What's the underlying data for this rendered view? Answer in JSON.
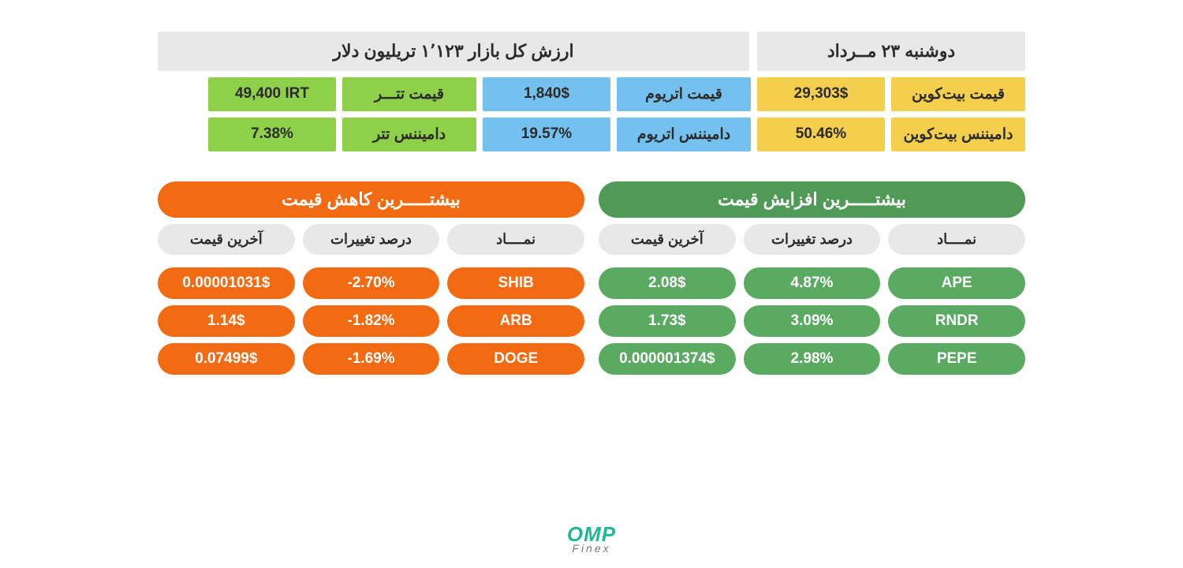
{
  "header": {
    "date": "دوشنبه ۲۳ مــرداد",
    "market_cap": "ارزش کل بازار ۱٬۱۲۳ تریلیون دلار"
  },
  "colors": {
    "btc": "#f4ce4d",
    "eth": "#74c1ef",
    "usdt": "#8fd04a",
    "grey": "#e8e8e8",
    "gain_title": "#4f9a57",
    "gain_cell": "#5aaa61",
    "lose": "#f26a12",
    "text_dark": "#2b2b2b",
    "text_light": "#ffffff",
    "logo_teal": "#1fb79a",
    "logo_grey": "#777777"
  },
  "stats": {
    "btc_price_label": "قیمت بیت‌کوین",
    "btc_price_value": "29,303$",
    "btc_dom_label": "دامیننس بیت‌کوین",
    "btc_dom_value": "50.46%",
    "eth_price_label": "قیمت اتریوم",
    "eth_price_value": "1,840$",
    "eth_dom_label": "دامیننس اتریوم",
    "eth_dom_value": "19.57%",
    "usdt_price_label": "قیمت تتـــر",
    "usdt_price_value": "49,400 IRT",
    "usdt_dom_label": "دامیننس تتر",
    "usdt_dom_value": "7.38%"
  },
  "gainers": {
    "title": "بیشتـــــرین افزایش قیمت",
    "cols": {
      "symbol": "نمــــاد",
      "change": "درصد تغییرات",
      "price": "آخرین قیمت"
    },
    "rows": [
      {
        "symbol": "APE",
        "change": "4.87%",
        "price": "2.08$",
        "price_small": false
      },
      {
        "symbol": "RNDR",
        "change": "3.09%",
        "price": "1.73$",
        "price_small": false
      },
      {
        "symbol": "PEPE",
        "change": "2.98%",
        "price": "0.000001374$",
        "price_small": true
      }
    ]
  },
  "losers": {
    "title": "بیشتـــــرین کاهش قیمت",
    "cols": {
      "symbol": "نمــــاد",
      "change": "درصد تغییرات",
      "price": "آخرین قیمت"
    },
    "rows": [
      {
        "symbol": "SHIB",
        "change": "-2.70%",
        "price": "0.00001031$",
        "price_small": true
      },
      {
        "symbol": "ARB",
        "change": "-1.82%",
        "price": "1.14$",
        "price_small": false
      },
      {
        "symbol": "DOGE",
        "change": "-1.69%",
        "price": "0.07499$",
        "price_small": false
      }
    ]
  },
  "logo": {
    "line1": "OMP",
    "line2": "Finex"
  }
}
